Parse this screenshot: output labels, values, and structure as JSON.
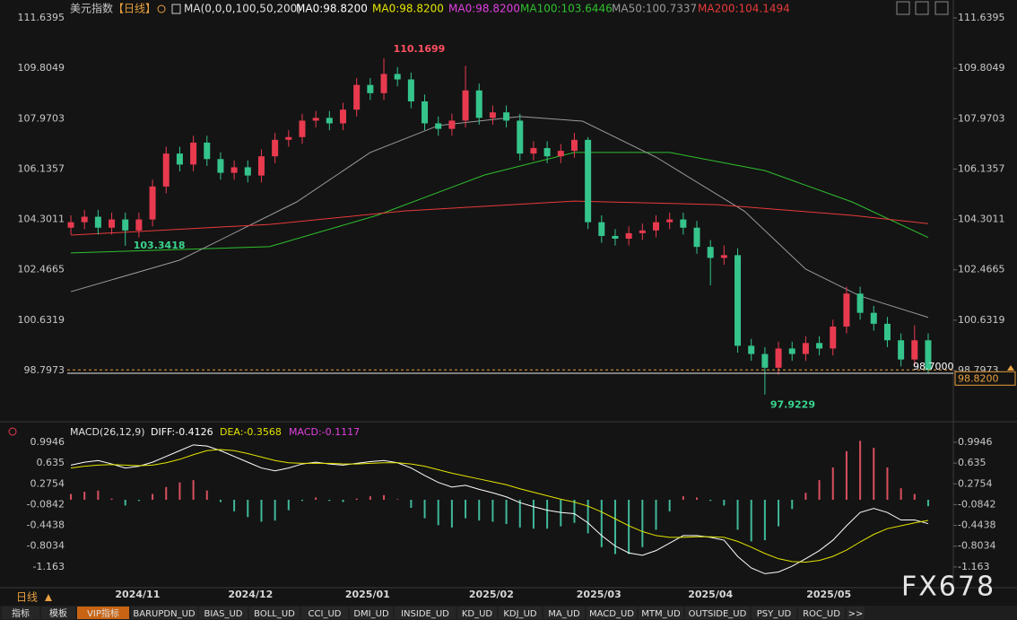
{
  "toolbar": {
    "symbol": "美元指数",
    "period": "【日线】"
  },
  "chart_data": [
    {
      "type": "candlestick",
      "indicator": "MA(0,0,0,100,50,200)",
      "header_items": [
        {
          "label": "MA0:98.8200",
          "color": "#ffffff"
        },
        {
          "label": "MA0:98.8200",
          "color": "#e4e400"
        },
        {
          "label": "MA0:98.8200",
          "color": "#e040e0"
        }
      ],
      "up_color": "#e83a4f",
      "down_color": "#35c48c",
      "open": [
        104.0,
        104.2,
        104.4,
        104.0,
        104.3,
        103.9,
        104.3,
        105.5,
        106.7,
        106.3,
        107.1,
        106.5,
        106.0,
        106.2,
        105.9,
        106.6,
        107.2,
        107.3,
        107.9,
        108.0,
        107.8,
        108.3,
        109.2,
        108.9,
        109.6,
        109.4,
        108.6,
        107.8,
        107.6,
        107.9,
        109.0,
        108.0,
        108.2,
        107.9,
        106.7,
        106.9,
        106.6,
        106.8,
        107.2,
        104.2,
        103.7,
        103.6,
        103.8,
        103.9,
        104.2,
        104.3,
        104.0,
        103.3,
        102.9,
        103.0,
        99.7,
        99.4,
        98.9,
        99.6,
        99.4,
        99.8,
        99.6,
        100.4,
        101.6,
        100.9,
        100.5,
        99.9,
        99.2,
        99.9
      ],
      "high": [
        104.45,
        104.65,
        104.65,
        104.55,
        104.55,
        104.55,
        105.75,
        106.95,
        106.95,
        107.35,
        107.35,
        106.75,
        106.45,
        106.45,
        106.85,
        107.45,
        107.55,
        108.15,
        108.25,
        108.25,
        108.55,
        109.45,
        109.45,
        110.1699,
        109.85,
        109.65,
        108.85,
        108.05,
        108.15,
        109.9,
        109.25,
        108.45,
        108.45,
        108.15,
        107.15,
        107.15,
        107.05,
        107.45,
        107.3,
        104.45,
        103.95,
        104.05,
        104.15,
        104.45,
        104.55,
        104.55,
        104.25,
        103.55,
        103.35,
        103.25,
        99.95,
        99.65,
        99.85,
        99.85,
        100.05,
        100.05,
        100.65,
        101.85,
        101.85,
        101.15,
        100.75,
        100.15,
        100.45,
        100.15
      ],
      "low": [
        103.75,
        103.95,
        103.75,
        103.75,
        103.3418,
        103.65,
        104.05,
        105.25,
        106.05,
        106.05,
        106.25,
        105.75,
        105.75,
        105.65,
        105.65,
        106.35,
        106.95,
        107.05,
        107.65,
        107.55,
        107.55,
        108.05,
        108.65,
        108.65,
        109.15,
        108.35,
        107.55,
        107.35,
        107.35,
        107.65,
        107.75,
        107.75,
        107.65,
        106.45,
        106.45,
        106.35,
        106.35,
        106.55,
        103.95,
        103.45,
        103.35,
        103.35,
        103.55,
        103.65,
        103.95,
        103.75,
        103.05,
        101.9,
        102.65,
        99.45,
        99.15,
        97.9229,
        98.65,
        99.15,
        99.15,
        99.35,
        99.35,
        100.15,
        100.65,
        100.25,
        99.65,
        98.95,
        98.95,
        98.7
      ],
      "close": [
        104.2,
        104.4,
        104.0,
        104.3,
        103.9,
        104.3,
        105.5,
        106.7,
        106.3,
        107.1,
        106.5,
        106.0,
        106.2,
        105.9,
        106.6,
        107.2,
        107.3,
        107.9,
        108.0,
        107.8,
        108.3,
        109.2,
        108.9,
        109.6,
        109.4,
        108.6,
        107.8,
        107.6,
        107.9,
        109.0,
        108.0,
        108.2,
        107.9,
        106.7,
        106.9,
        106.6,
        106.8,
        107.2,
        104.2,
        103.7,
        103.6,
        103.8,
        103.9,
        104.2,
        104.3,
        104.0,
        103.3,
        102.9,
        103.0,
        99.7,
        99.4,
        98.9,
        99.6,
        99.4,
        99.8,
        99.6,
        100.4,
        101.6,
        100.9,
        100.5,
        99.9,
        99.2,
        99.9,
        98.82
      ],
      "series": [
        {
          "name": "MA100:103.6446",
          "color": "#2fc02f",
          "x": [
            0,
            14.6,
            22.5,
            30.4,
            37,
            44,
            51,
            57.4,
            63
          ],
          "values": [
            103.08,
            103.31,
            104.45,
            105.92,
            106.74,
            106.74,
            106.08,
            104.94,
            103.6446
          ]
        },
        {
          "name": "MA50:100.7337",
          "color": "#9a9a9a",
          "x": [
            0,
            8,
            16.6,
            22,
            27,
            33,
            37.6,
            43,
            49.5,
            54,
            58,
            63
          ],
          "values": [
            101.67,
            102.82,
            104.94,
            106.74,
            107.72,
            108.05,
            107.88,
            106.57,
            104.6,
            102.49,
            101.51,
            100.7337
          ]
        },
        {
          "name": "MA200:104.1494",
          "color": "#e83a3a",
          "x": [
            0,
            14.6,
            24.5,
            37,
            47.5,
            57.4,
            63
          ],
          "values": [
            103.73,
            104.12,
            104.61,
            104.97,
            104.84,
            104.45,
            104.1494
          ]
        }
      ],
      "annotations": [
        {
          "x": 23.3,
          "y": 110.1699,
          "color": "#ff5060"
        },
        {
          "x": 4.2,
          "y": 103.3418,
          "color": "#3ad48e"
        },
        {
          "x": 51,
          "y": 97.9229,
          "color": "#3ad48e"
        }
      ],
      "last_line": {
        "value": 98.7,
        "label": "98.7000"
      },
      "current_price": {
        "value": 98.82,
        "label": "98.8200"
      },
      "xlim": [
        -0.2,
        63.2
      ],
      "ylim": [
        96.934,
        112.293
      ],
      "yticks": [
        111.6395,
        109.8049,
        107.9703,
        106.1357,
        104.3011,
        102.4665,
        100.6319,
        98.7973
      ]
    },
    {
      "type": "macd",
      "title": "MACD(26,12,9)",
      "series": [
        {
          "name": "DIFF:-0.4126",
          "color": "#ffffff",
          "values": [
            0.6,
            0.65,
            0.68,
            0.62,
            0.55,
            0.58,
            0.65,
            0.75,
            0.85,
            0.95,
            0.93,
            0.85,
            0.75,
            0.65,
            0.55,
            0.5,
            0.55,
            0.62,
            0.65,
            0.62,
            0.6,
            0.63,
            0.66,
            0.68,
            0.64,
            0.55,
            0.42,
            0.3,
            0.22,
            0.25,
            0.18,
            0.12,
            0.05,
            -0.05,
            -0.12,
            -0.18,
            -0.22,
            -0.24,
            -0.4,
            -0.62,
            -0.8,
            -0.92,
            -0.96,
            -0.88,
            -0.75,
            -0.62,
            -0.62,
            -0.65,
            -0.7,
            -0.98,
            -1.18,
            -1.28,
            -1.25,
            -1.15,
            -1.02,
            -0.88,
            -0.7,
            -0.45,
            -0.22,
            -0.15,
            -0.22,
            -0.35,
            -0.35,
            -0.4126
          ]
        },
        {
          "name": "DEA:-0.3568",
          "color": "#e4e400",
          "values": [
            0.55,
            0.58,
            0.6,
            0.61,
            0.6,
            0.59,
            0.6,
            0.64,
            0.7,
            0.78,
            0.85,
            0.87,
            0.85,
            0.8,
            0.74,
            0.68,
            0.64,
            0.63,
            0.63,
            0.63,
            0.62,
            0.62,
            0.63,
            0.64,
            0.64,
            0.62,
            0.58,
            0.52,
            0.46,
            0.41,
            0.36,
            0.31,
            0.26,
            0.19,
            0.13,
            0.07,
            0.01,
            -0.04,
            -0.11,
            -0.21,
            -0.33,
            -0.45,
            -0.55,
            -0.62,
            -0.65,
            -0.65,
            -0.64,
            -0.64,
            -0.65,
            -0.72,
            -0.82,
            -0.93,
            -1.02,
            -1.07,
            -1.08,
            -1.05,
            -0.98,
            -0.87,
            -0.73,
            -0.6,
            -0.5,
            -0.45,
            -0.4,
            -0.3568
          ]
        },
        {
          "name": "MACD:-0.1117",
          "color": "#e040e0",
          "up_color": "#d9505f",
          "down_color": "#3fb89a",
          "values": [
            0.1,
            0.14,
            0.16,
            0.02,
            -0.1,
            -0.02,
            0.1,
            0.22,
            0.3,
            0.34,
            0.16,
            -0.04,
            -0.2,
            -0.3,
            -0.38,
            -0.36,
            -0.18,
            -0.02,
            0.04,
            -0.02,
            -0.04,
            0.02,
            0.06,
            0.08,
            0.01,
            -0.14,
            -0.32,
            -0.44,
            -0.48,
            -0.32,
            -0.36,
            -0.38,
            -0.42,
            -0.48,
            -0.5,
            -0.5,
            -0.46,
            -0.4,
            -0.58,
            -0.82,
            -0.94,
            -0.94,
            -0.82,
            -0.52,
            -0.2,
            0.06,
            0.04,
            -0.02,
            -0.1,
            -0.52,
            -0.72,
            -0.7,
            -0.46,
            -0.16,
            0.12,
            0.34,
            0.56,
            0.84,
            1.02,
            0.9,
            0.56,
            0.2,
            0.1,
            -0.1117
          ]
        }
      ],
      "xlim": [
        -0.2,
        63.2
      ],
      "ylim": [
        -1.522,
        1.351
      ],
      "yticks": [
        0.9946,
        0.635,
        0.2754,
        -0.0842,
        -0.4438,
        -0.8034,
        -1.163
      ],
      "xticks": [
        {
          "value": 4.9,
          "label": "2024/11"
        },
        {
          "value": 13.2,
          "label": "2024/12"
        },
        {
          "value": 21.8,
          "label": "2025/01"
        },
        {
          "value": 30.9,
          "label": "2025/02"
        },
        {
          "value": 38.8,
          "label": "2025/03"
        },
        {
          "value": 47.0,
          "label": "2025/04"
        },
        {
          "value": 55.7,
          "label": "2025/05"
        }
      ]
    }
  ],
  "period_label": "日线",
  "watermark": "FX678",
  "tabs": [
    "指标",
    "模板",
    "VIP指标",
    "BARUPDN_UD",
    "BIAS_UD",
    "BOLL_UD",
    "CCI_UD",
    "DMI_UD",
    "INSIDE_UD",
    "KD_UD",
    "KDJ_UD",
    "MA_UD",
    "MACD_UD",
    "MTM_UD",
    "OUTSIDE_UD",
    "PSY_UD",
    "ROC_UD",
    ">>"
  ]
}
